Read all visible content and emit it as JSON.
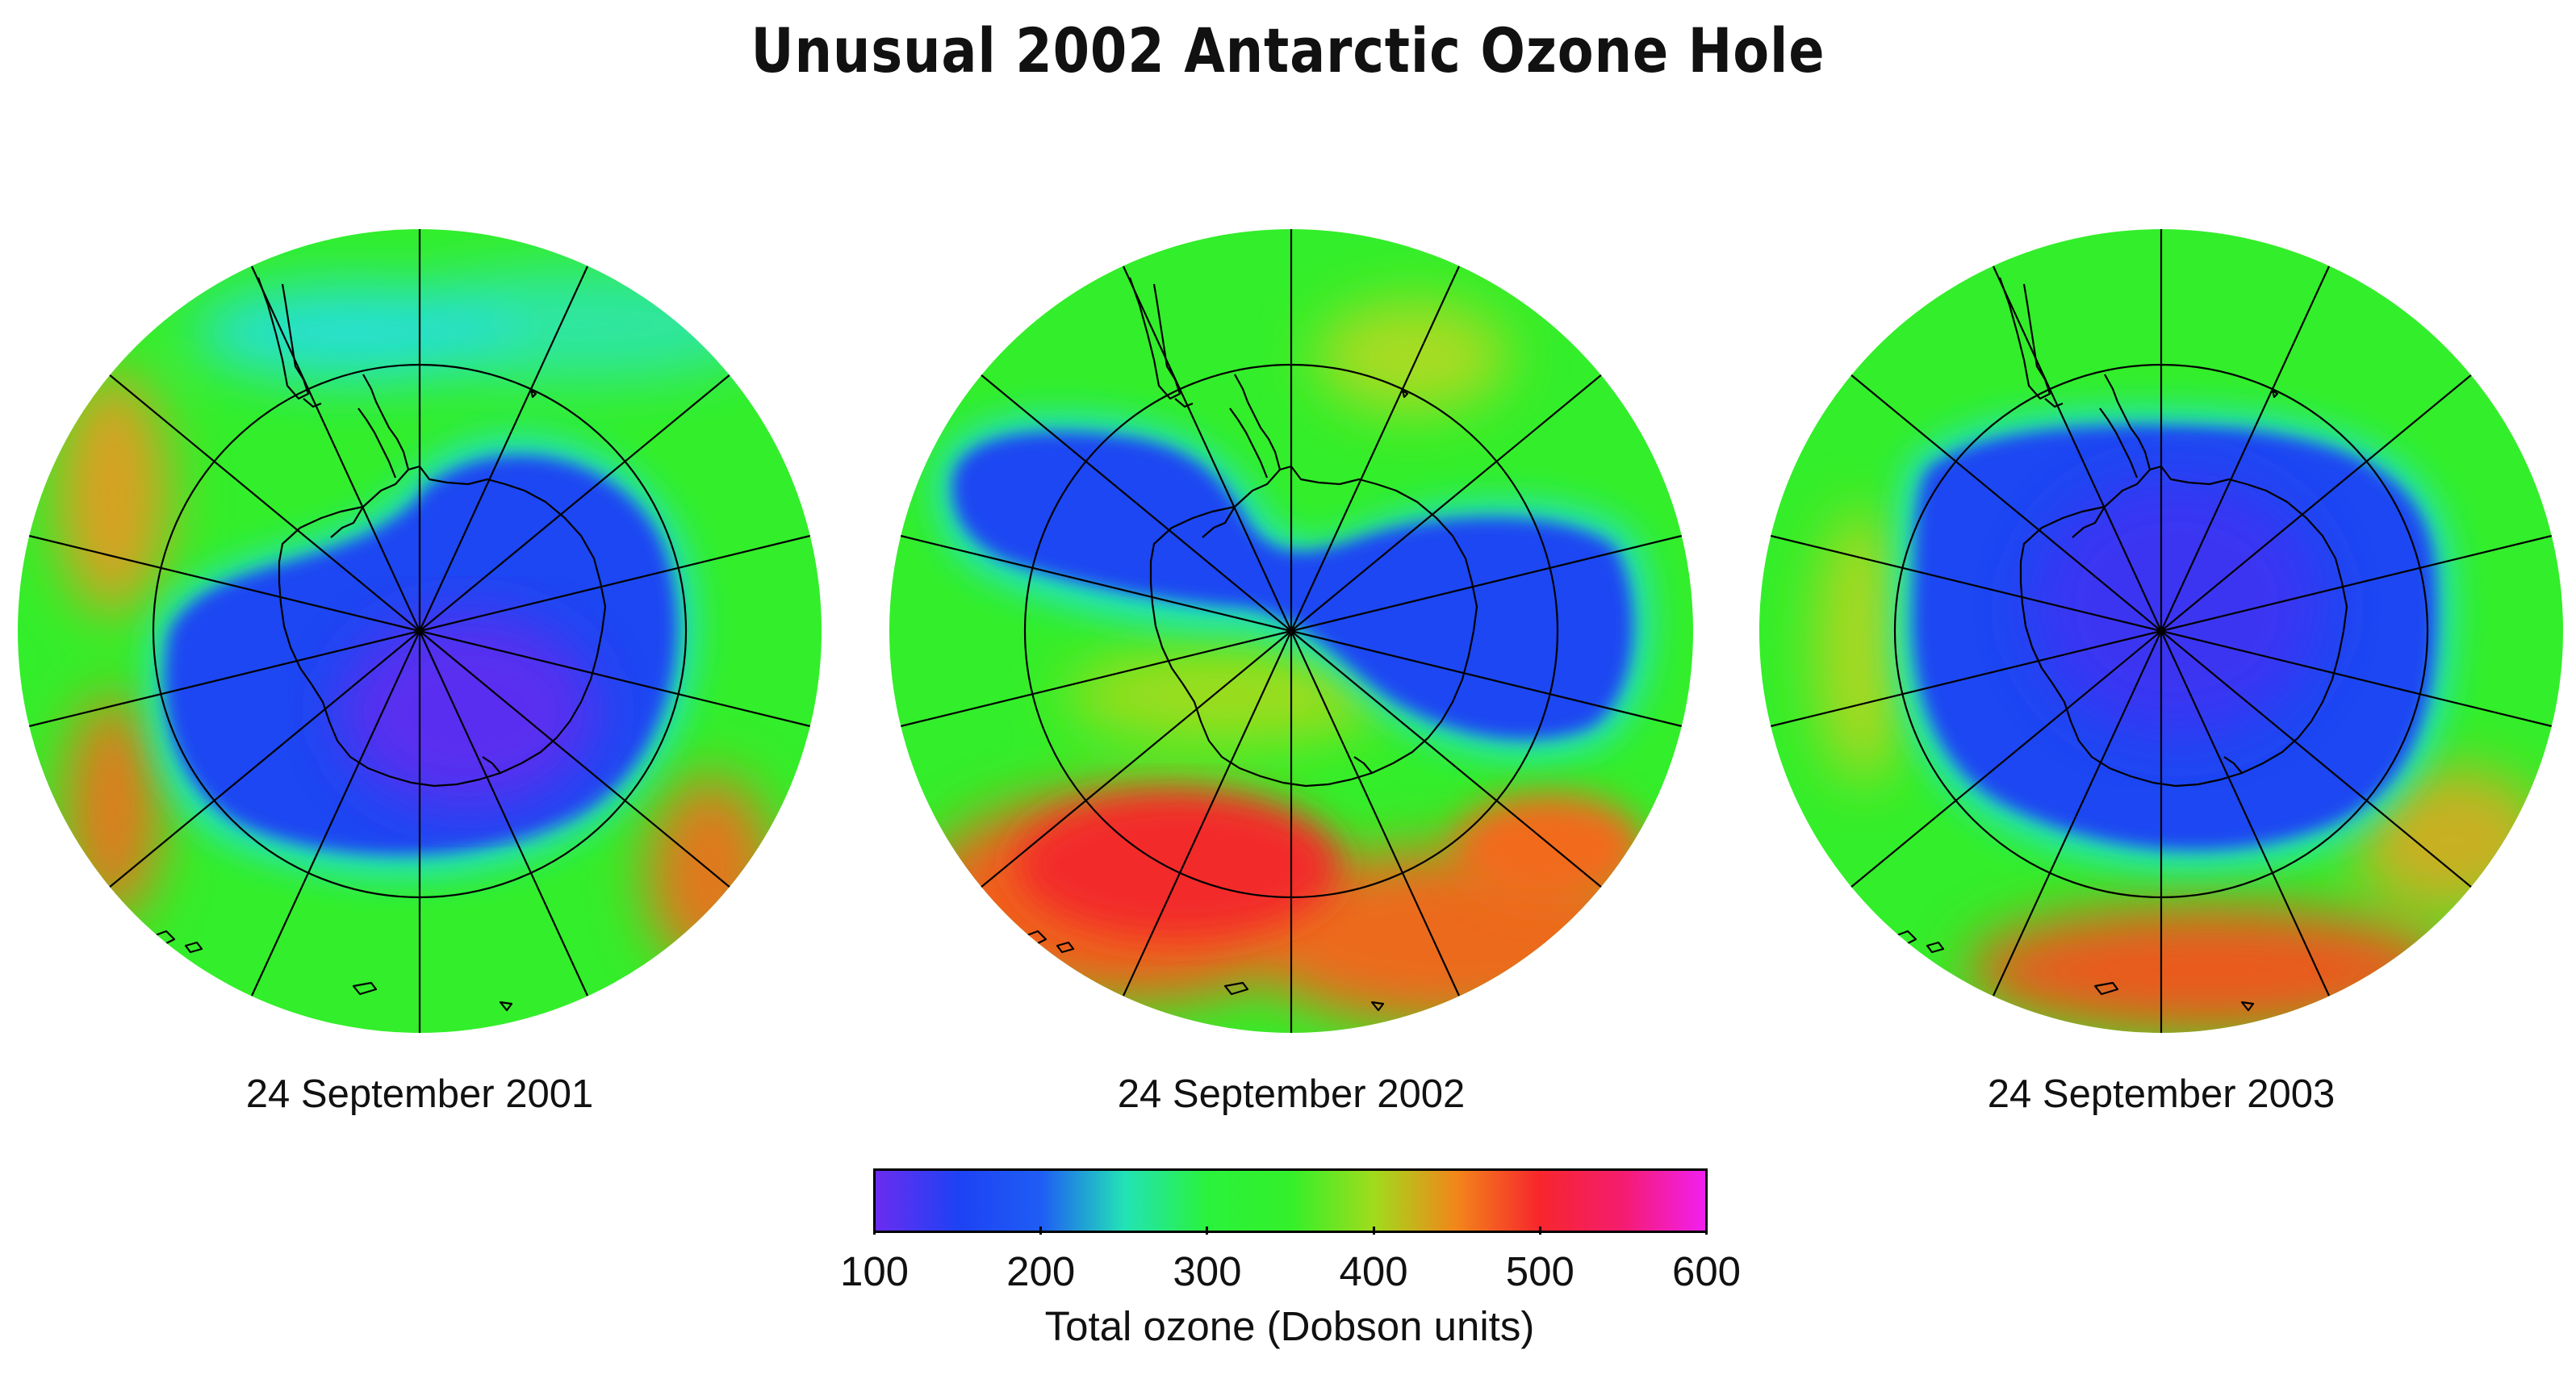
{
  "title": "Unusual 2002 Antarctic Ozone Hole",
  "maps": [
    {
      "caption": "24 September 2001"
    },
    {
      "caption": "24 September 2002"
    },
    {
      "caption": "24 September 2003"
    }
  ],
  "colorbar": {
    "label": "Total ozone (Dobson units)",
    "ticks": [
      "100",
      "200",
      "300",
      "400",
      "500",
      "600"
    ],
    "range": [
      100,
      600
    ],
    "colors": [
      "#6a2cf0",
      "#1d42f4",
      "#1f5df4",
      "#22e3b6",
      "#2af23c",
      "#33f02a",
      "#9fdc1c",
      "#f2861a",
      "#f7262c",
      "#f41c6e",
      "#f21ff0"
    ]
  },
  "legend_colors": {
    "land_outline": "#000000",
    "graticule": "#000000"
  }
}
